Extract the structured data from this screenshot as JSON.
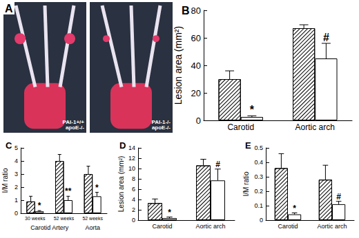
{
  "chart_data": [
    {
      "type": "image",
      "title": "A",
      "labels": [
        [
          "PAI-1+/+",
          "apoE-/-"
        ],
        [
          "PAI-1-/-",
          "apoE-/-"
        ]
      ]
    },
    {
      "type": "bar",
      "title": "B",
      "ylabel": "Lesion area (mm²)",
      "categories": [
        "Carotid",
        "Aortic arch"
      ],
      "series": [
        {
          "color": "#000000",
          "values": [
            30,
            67
          ],
          "errors": [
            6,
            2.5
          ]
        },
        {
          "color": "#ffffff",
          "values": [
            2.5,
            45
          ],
          "errors": [
            0.8,
            11
          ],
          "annotations": [
            "*",
            "#"
          ]
        }
      ],
      "ylim": [
        0,
        80
      ],
      "yticks": [
        0,
        20,
        40,
        60,
        80
      ]
    },
    {
      "type": "bar",
      "title": "C",
      "ylabel": "I/M ratio",
      "categories": [
        "30 weeks",
        "52 weeks",
        "52 weeks"
      ],
      "x_groups": [
        {
          "label": "Carotid Artery",
          "span": 2
        },
        {
          "label": "Aorta",
          "span": 1
        }
      ],
      "series": [
        {
          "color": "#000000",
          "values": [
            0.9,
            4.0,
            3.0
          ],
          "errors": [
            0.4,
            0.5,
            0.6
          ]
        },
        {
          "color": "#ffffff",
          "values": [
            0.15,
            1.0,
            1.3
          ],
          "errors": [
            0.05,
            0.3,
            0.3
          ],
          "annotations": [
            "*",
            "**",
            "*"
          ]
        }
      ],
      "ylim": [
        0,
        5
      ],
      "yticks": [
        0,
        1,
        2,
        3,
        4,
        5
      ]
    },
    {
      "type": "bar",
      "title": "D",
      "ylabel": "Lesion area (mm²)",
      "categories": [
        "Carotid",
        "Aortic arch"
      ],
      "series": [
        {
          "color": "#000000",
          "values": [
            3.3,
            10.6
          ],
          "errors": [
            0.8,
            1.2
          ]
        },
        {
          "color": "#ffffff",
          "values": [
            0.4,
            7.7
          ],
          "errors": [
            0.2,
            2.2
          ],
          "annotations": [
            "*",
            "#"
          ]
        }
      ],
      "ylim": [
        0,
        14
      ],
      "yticks": [
        0,
        2,
        4,
        6,
        8,
        10,
        12,
        14
      ]
    },
    {
      "type": "bar",
      "title": "E",
      "ylabel": "I/M ratio",
      "categories": [
        "Carotid",
        "Aortic arch"
      ],
      "series": [
        {
          "color": "#000000",
          "values": [
            0.36,
            0.28
          ],
          "errors": [
            0.1,
            0.1
          ]
        },
        {
          "color": "#ffffff",
          "values": [
            0.04,
            0.11
          ],
          "errors": [
            0.01,
            0.02
          ],
          "annotations": [
            "*",
            "#"
          ]
        }
      ],
      "ylim": [
        0,
        0.5
      ],
      "yticks": [
        0,
        0.1,
        0.2,
        0.3,
        0.4,
        0.5
      ]
    }
  ]
}
